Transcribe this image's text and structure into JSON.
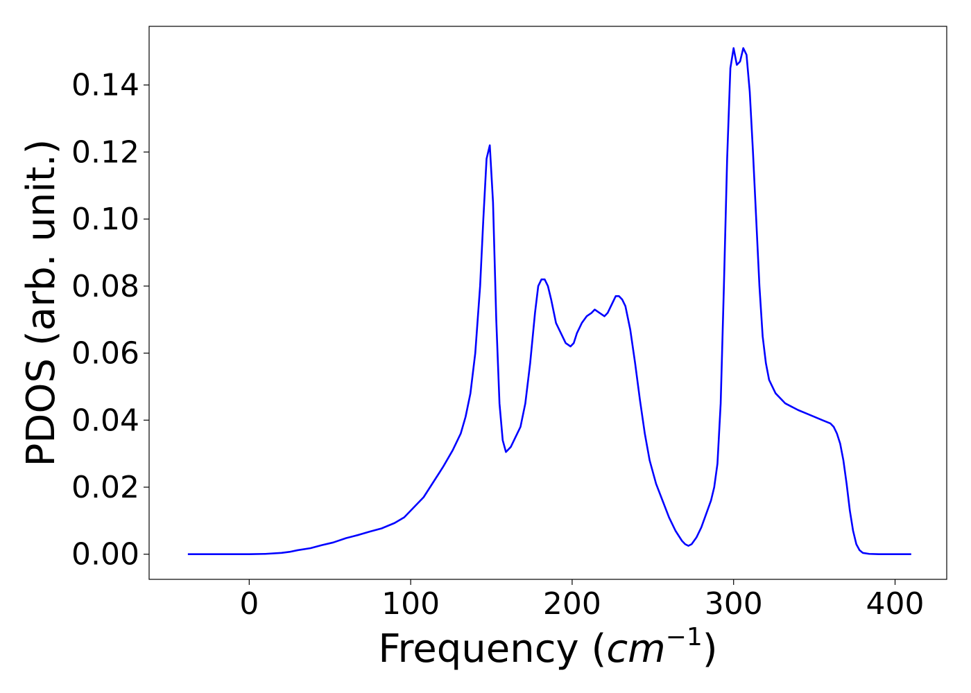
{
  "chart_data": {
    "type": "line",
    "title": "",
    "xlabel": "Frequency (",
    "xlabel_math": "cm",
    "xlabel_sup": "−1",
    "xlabel_close": ")",
    "ylabel": "PDOS (arb. unit.)",
    "xlim": [
      -62,
      432
    ],
    "ylim": [
      -0.0075,
      0.1575
    ],
    "xticks": [
      0,
      100,
      200,
      300,
      400
    ],
    "xtick_labels": [
      "0",
      "100",
      "200",
      "300",
      "400"
    ],
    "yticks": [
      0.0,
      0.02,
      0.04,
      0.06,
      0.08,
      0.1,
      0.12,
      0.14
    ],
    "ytick_labels": [
      "0.00",
      "0.02",
      "0.04",
      "0.06",
      "0.08",
      "0.10",
      "0.12",
      "0.14"
    ],
    "grid": false,
    "legend": "none",
    "series": [
      {
        "color": "#0000ff",
        "x": [
          -38,
          -20,
          0,
          10,
          20,
          25,
          30,
          38,
          45,
          52,
          60,
          68,
          75,
          82,
          90,
          96,
          102,
          108,
          114,
          120,
          126,
          131,
          134,
          137,
          140,
          143,
          145,
          147,
          149,
          151,
          153,
          155,
          157,
          159,
          162,
          165,
          168,
          171,
          174,
          177,
          179,
          181,
          183,
          185,
          187,
          190,
          193,
          196,
          199,
          201,
          203,
          206,
          209,
          212,
          214,
          217,
          220,
          222,
          225,
          227,
          229,
          231,
          233,
          236,
          239,
          242,
          245,
          248,
          252,
          256,
          260,
          264,
          268,
          270,
          272,
          274,
          277,
          280,
          283,
          286,
          288,
          290,
          292,
          294,
          296,
          298,
          300,
          302,
          304,
          306,
          308,
          310,
          312,
          314,
          316,
          318,
          320,
          322,
          324,
          326,
          328,
          332,
          336,
          340,
          345,
          350,
          355,
          360,
          362,
          364,
          366,
          368,
          370,
          372,
          374,
          376,
          378,
          380,
          384,
          390,
          400,
          410
        ],
        "y": [
          0.0,
          0.0,
          0.0,
          0.0001,
          0.0004,
          0.0007,
          0.0012,
          0.0018,
          0.0027,
          0.0035,
          0.0048,
          0.0058,
          0.0068,
          0.0077,
          0.0093,
          0.011,
          0.014,
          0.017,
          0.0215,
          0.026,
          0.031,
          0.036,
          0.041,
          0.048,
          0.06,
          0.08,
          0.1,
          0.118,
          0.122,
          0.105,
          0.07,
          0.045,
          0.034,
          0.0305,
          0.032,
          0.035,
          0.038,
          0.045,
          0.057,
          0.072,
          0.08,
          0.082,
          0.082,
          0.08,
          0.076,
          0.069,
          0.066,
          0.063,
          0.062,
          0.063,
          0.066,
          0.069,
          0.071,
          0.072,
          0.073,
          0.072,
          0.071,
          0.072,
          0.075,
          0.077,
          0.077,
          0.076,
          0.074,
          0.067,
          0.057,
          0.046,
          0.036,
          0.028,
          0.021,
          0.016,
          0.011,
          0.007,
          0.004,
          0.003,
          0.0025,
          0.003,
          0.005,
          0.008,
          0.012,
          0.016,
          0.02,
          0.027,
          0.045,
          0.08,
          0.118,
          0.145,
          0.151,
          0.146,
          0.147,
          0.151,
          0.149,
          0.138,
          0.12,
          0.1,
          0.08,
          0.065,
          0.057,
          0.052,
          0.05,
          0.048,
          0.047,
          0.045,
          0.044,
          0.043,
          0.042,
          0.041,
          0.04,
          0.039,
          0.038,
          0.036,
          0.033,
          0.028,
          0.021,
          0.013,
          0.007,
          0.003,
          0.0012,
          0.0004,
          0.0001,
          0.0,
          0.0,
          0.0
        ]
      }
    ]
  }
}
